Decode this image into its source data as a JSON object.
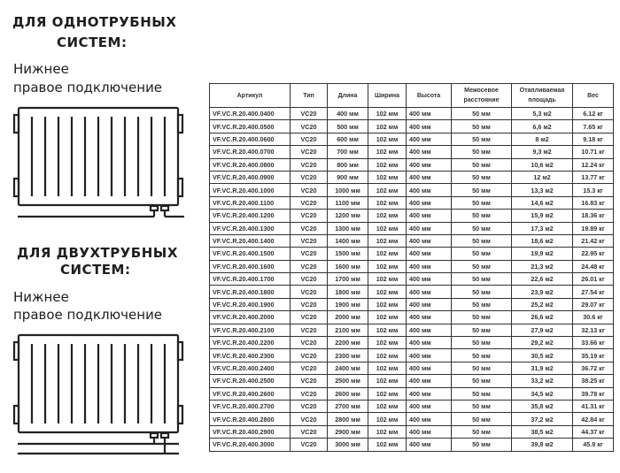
{
  "left": {
    "one_pipe": {
      "title_line1": "ДЛЯ ОДНОТРУБНЫХ",
      "title_line2": "СИСТЕМ:",
      "sub_line1": "Нижнее",
      "sub_line2": "правое подключение"
    },
    "two_pipe": {
      "title_line1": "ДЛЯ ДВУХТРУБНЫХ",
      "title_line2": "СИСТЕМ:",
      "sub_line1": "Нижнее",
      "sub_line2": "правое подключение"
    }
  },
  "table": {
    "headers": [
      "Артикул",
      "Тип",
      "Длина",
      "Ширина",
      "Высота",
      "Межосевое расстояние",
      "Отапливаемая площадь",
      "Вес"
    ],
    "rows": [
      [
        "VF.VC.R.20.400.0400",
        "VC20",
        "400 мм",
        "102 мм",
        "400 мм",
        "50 мм",
        "5,3 м2",
        "6.12 кг"
      ],
      [
        "VF.VC.R.20.400.0500",
        "VC20",
        "500 мм",
        "102 мм",
        "400 мм",
        "50 мм",
        "6,6 м2",
        "7.65 кг"
      ],
      [
        "VF.VC.R.20.400.0600",
        "VC20",
        "600 мм",
        "102 мм",
        "400 мм",
        "50 мм",
        "8 м2",
        "9.18 кг"
      ],
      [
        "VF.VC.R.20.400.0700",
        "VC20",
        "700 мм",
        "102 мм",
        "400 мм",
        "50 мм",
        "9,3 м2",
        "10.71 кг"
      ],
      [
        "VF.VC.R.20.400.0800",
        "VC20",
        "800 мм",
        "102 мм",
        "400 мм",
        "50 мм",
        "10,6 м2",
        "12.24 кг"
      ],
      [
        "VF.VC.R.20.400.0900",
        "VC20",
        "900 мм",
        "102 мм",
        "400 мм",
        "50 мм",
        "12 м2",
        "13.77 кг"
      ],
      [
        "VF.VC.R.20.400.1000",
        "VC20",
        "1000 мм",
        "102 мм",
        "400 мм",
        "50 мм",
        "13,3 м2",
        "15.3 кг"
      ],
      [
        "VF.VC.R.20.400.1100",
        "VC20",
        "1100 мм",
        "102 мм",
        "400 мм",
        "50 мм",
        "14,6 м2",
        "16.83 кг"
      ],
      [
        "VF.VC.R.20.400.1200",
        "VC20",
        "1200 мм",
        "102 мм",
        "400 мм",
        "50 мм",
        "15,9 м2",
        "18.36 кг"
      ],
      [
        "VF.VC.R.20.400.1300",
        "VC20",
        "1300 мм",
        "102 мм",
        "400 мм",
        "50 мм",
        "17,3 м2",
        "19.89 кг"
      ],
      [
        "VF.VC.R.20.400.1400",
        "VC20",
        "1400 мм",
        "102 мм",
        "400 мм",
        "50 мм",
        "18,6 м2",
        "21.42 кг"
      ],
      [
        "VF.VC.R.20.400.1500",
        "VC20",
        "1500 мм",
        "102 мм",
        "400 мм",
        "50 мм",
        "19,9 м2",
        "22.95 кг"
      ],
      [
        "VF.VC.R.20.400.1600",
        "VC20",
        "1600 мм",
        "102 мм",
        "400 мм",
        "50 мм",
        "21,3 м2",
        "24.48 кг"
      ],
      [
        "VF.VC.R.20.400.1700",
        "VC20",
        "1700 мм",
        "102 мм",
        "400 мм",
        "50 мм",
        "22,6 м2",
        "26.01 кг"
      ],
      [
        "VF.VC.R.20.400.1800",
        "VC20",
        "1800 мм",
        "102 мм",
        "400 мм",
        "50 мм",
        "23,9 м2",
        "27.54 кг"
      ],
      [
        "VF.VC.R.20.400.1900",
        "VC20",
        "1900 мм",
        "102 мм",
        "400 мм",
        "50 мм",
        "25,2 м2",
        "29.07 кг"
      ],
      [
        "VF.VC.R.20.400.2000",
        "VC20",
        "2000 мм",
        "102 мм",
        "400 мм",
        "50 мм",
        "26,6 м2",
        "30.6 кг"
      ],
      [
        "VF.VC.R.20.400.2100",
        "VC20",
        "2100 мм",
        "102 мм",
        "400 мм",
        "50 мм",
        "27,9 м2",
        "32.13 кг"
      ],
      [
        "VF.VC.R.20.400.2200",
        "VC20",
        "2200 мм",
        "102 мм",
        "400 мм",
        "50 мм",
        "29,2 м2",
        "33.66 кг"
      ],
      [
        "VF.VC.R.20.400.2300",
        "VC20",
        "2300 мм",
        "102 мм",
        "400 мм",
        "50 мм",
        "30,5 м2",
        "35.19 кг"
      ],
      [
        "VF.VC.R.20.400.2400",
        "VC20",
        "2400 мм",
        "102 мм",
        "400 мм",
        "50 мм",
        "31,9 м2",
        "36.72 кг"
      ],
      [
        "VF.VC.R.20.400.2500",
        "VC20",
        "2500 мм",
        "102 мм",
        "400 мм",
        "50 мм",
        "33,2 м2",
        "38.25 кг"
      ],
      [
        "VF.VC.R.20.400.2600",
        "VC20",
        "2600 мм",
        "102 мм",
        "400 мм",
        "50 мм",
        "34,5 м2",
        "39.78 кг"
      ],
      [
        "VF.VC.R.20.400.2700",
        "VC20",
        "2700 мм",
        "102 мм",
        "400 мм",
        "50 мм",
        "35,8 м2",
        "41.31 кг"
      ],
      [
        "VF.VC.R.20.400.2800",
        "VC20",
        "2800 мм",
        "102 мм",
        "400 мм",
        "50 мм",
        "37,2 м2",
        "42.84 кг"
      ],
      [
        "VF.VC.R.20.400.2900",
        "VC20",
        "2900 мм",
        "102 мм",
        "400 мм",
        "50 мм",
        "38,5 м2",
        "44.37 кг"
      ],
      [
        "VF.VC.R.20.400.3000",
        "VC20",
        "3000 мм",
        "102 мм",
        "400 мм",
        "50 мм",
        "39,8 м2",
        "45.9 кг"
      ]
    ]
  },
  "icons": {
    "radiator_one_pipe": "radiator-single-pipe-icon",
    "radiator_two_pipe": "radiator-two-pipe-icon"
  }
}
